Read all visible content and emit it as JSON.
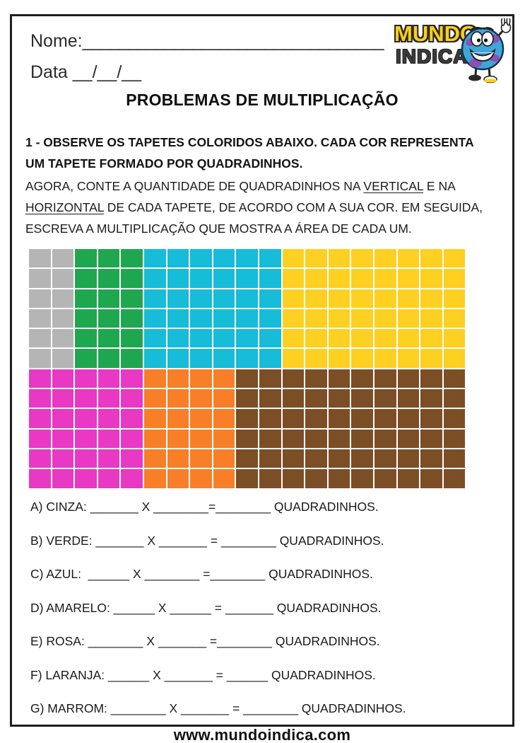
{
  "page": {
    "header": {
      "name_label": "Nome:",
      "name_line": "_________________________________",
      "date_label": "Data",
      "date_blanks": "__/__/__"
    },
    "logo": {
      "word1": "MUNDO",
      "word2": "INDICA",
      "word1_color": "#fccf1b",
      "word2_color": "#3a3a3a",
      "mascot_icon": "globe-with-peace-sign"
    },
    "title": "PROBLEMAS DE MULTIPLICAÇÃO",
    "instruction_bold": "1 - OBSERVE OS TAPETES COLORIDOS ABAIXO. CADA COR REPRESENTA UM TAPETE FORMADO POR QUADRADINHOS.",
    "instruction_segments": [
      {
        "text": "AGORA, CONTE A QUANTIDADE DE QUADRADINHOS NA "
      },
      {
        "text": "VERTICAL",
        "underline": true
      },
      {
        "text": " E NA "
      },
      {
        "text": "HORIZONTAL",
        "underline": true
      },
      {
        "text": " DE CADA TAPETE, DE ACORDO COM A SUA COR. EM SEGUIDA, ESCREVA A MULTIPLICAÇÃO QUE MOSTRA A ÁREA DE CADA UM."
      }
    ],
    "carpet_grid": {
      "columns": 19,
      "rows_per_band": 6,
      "bands": [
        {
          "segments": [
            {
              "name": "cinza",
              "color": "#b5b5b5",
              "cols": 2,
              "rows": 6
            },
            {
              "name": "verde",
              "color": "#1fa750",
              "cols": 3,
              "rows": 6
            },
            {
              "name": "azul",
              "color": "#17bcd8",
              "cols": 6,
              "rows": 6
            },
            {
              "name": "amarelo",
              "color": "#fdd021",
              "cols": 8,
              "rows": 6
            }
          ]
        },
        {
          "segments": [
            {
              "name": "rosa",
              "color": "#e838c4",
              "cols": 5,
              "rows": 6
            },
            {
              "name": "laranja",
              "color": "#f87e27",
              "cols": 4,
              "rows": 6
            },
            {
              "name": "marrom",
              "color": "#7c4e26",
              "cols": 10,
              "rows": 6
            }
          ]
        }
      ]
    },
    "answers": [
      "A) CINZA: _______ X ________=________ QUADRADINHOS.",
      "B) VERDE: _______ X _______ = ________ QUADRADINHOS.",
      "C) AZUL:  ______ X ________ =________ QUADRADINHOS.",
      "D) AMARELO: ______ X ______ = _______ QUADRADINHOS.",
      "E) ROSA: ________ X _______ =________ QUADRADINHOS.",
      "F) LARANJA: ______ X _______ = ______ QUADRADINHOS.",
      "G) MARROM: ________ X _______ = ________ QUADRADINHOS."
    ],
    "footer_url": "www.mundoindica.com"
  }
}
